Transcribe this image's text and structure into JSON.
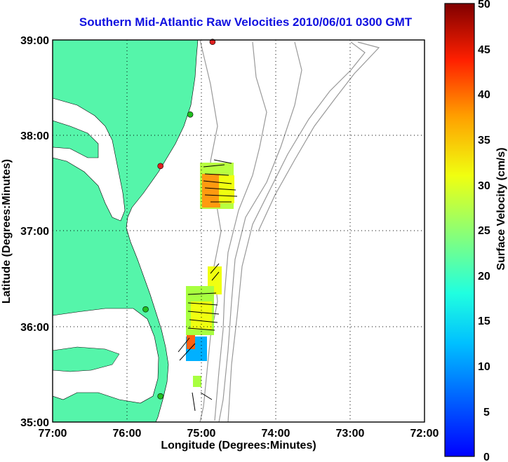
{
  "map": {
    "title": "Southern Mid-Atlantic Raw Velocities 2010/06/01 0300 GMT",
    "xlabel": "Longitude (Degrees:Minutes)",
    "ylabel": "Latitude (Degrees:Minutes)",
    "lon_range": [
      -77,
      -72
    ],
    "lat_range": [
      35,
      39
    ],
    "x_ticks": [
      "77:00",
      "76:00",
      "75:00",
      "74:00",
      "73:00",
      "72:00"
    ],
    "y_ticks": [
      "39:00",
      "38:00",
      "37:00",
      "36:00",
      "35:00"
    ],
    "grid": "dotted",
    "land_color": "#55f5aa",
    "bathymetry_color": "#999999"
  },
  "colorbar": {
    "label": "Surface Velocity (cm/s)",
    "range": [
      0,
      50
    ],
    "ticks": [
      "50",
      "45",
      "40",
      "35",
      "30",
      "25",
      "20",
      "15",
      "10",
      "5",
      "0"
    ],
    "colormap": "jet"
  },
  "stations": [
    {
      "lon": -74.85,
      "lat": 38.98,
      "color": "#e02020"
    },
    {
      "lon": -75.15,
      "lat": 38.22,
      "color": "#20c020"
    },
    {
      "lon": -75.55,
      "lat": 37.68,
      "color": "#e02020"
    },
    {
      "lon": -75.75,
      "lat": 36.18,
      "color": "#20c020"
    },
    {
      "lon": -75.55,
      "lat": 35.27,
      "color": "#20c020"
    }
  ]
}
